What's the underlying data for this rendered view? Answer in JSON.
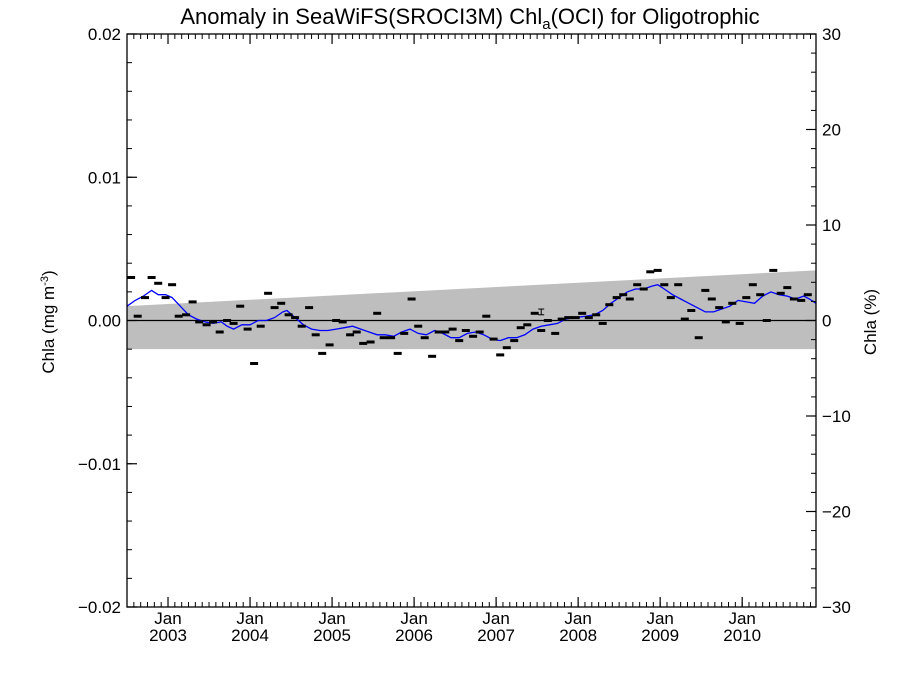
{
  "chart_data": {
    "type": "scatter",
    "title": {
      "main": "Anomaly in SeaWiFS(SROCI3M) Chl",
      "sub": "a",
      "suffix": "(OCI) for Oligotrophic"
    },
    "ylabel": {
      "prefix": "Chla (mg m",
      "sup": "-3",
      "suffix": ")"
    },
    "y2label": "Chla (%)",
    "xlim": [
      2002.5,
      2010.9
    ],
    "ylim": [
      -0.02,
      0.02
    ],
    "y2lim": [
      -30,
      30
    ],
    "x_ticks": [
      {
        "x": 2003.0,
        "month": "Jan",
        "year": "2003"
      },
      {
        "x": 2004.0,
        "month": "Jan",
        "year": "2004"
      },
      {
        "x": 2005.0,
        "month": "Jan",
        "year": "2005"
      },
      {
        "x": 2006.0,
        "month": "Jan",
        "year": "2006"
      },
      {
        "x": 2007.0,
        "month": "Jan",
        "year": "2007"
      },
      {
        "x": 2008.0,
        "month": "Jan",
        "year": "2008"
      },
      {
        "x": 2009.0,
        "month": "Jan",
        "year": "2009"
      },
      {
        "x": 2010.0,
        "month": "Jan",
        "year": "2010"
      }
    ],
    "y_ticks": [
      {
        "v": 0.02,
        "label": "0.02"
      },
      {
        "v": 0.01,
        "label": "0.01"
      },
      {
        "v": 0.0,
        "label": "0.00"
      },
      {
        "v": -0.01,
        "label": "−0.01"
      },
      {
        "v": -0.02,
        "label": "−0.02"
      }
    ],
    "y2_ticks": [
      {
        "v": 30,
        "label": "30"
      },
      {
        "v": 20,
        "label": "20"
      },
      {
        "v": 10,
        "label": "10"
      },
      {
        "v": 0,
        "label": "0"
      },
      {
        "v": -10,
        "label": "−10"
      },
      {
        "v": -20,
        "label": "−20"
      },
      {
        "v": -30,
        "label": "−30"
      }
    ],
    "band": {
      "upper": [
        [
          2002.5,
          0.001
        ],
        [
          2010.9,
          0.0035
        ]
      ],
      "lower": [
        [
          2002.5,
          -0.002
        ],
        [
          2010.9,
          -0.002
        ]
      ],
      "color": "#bebebe"
    },
    "zero_line": 0.0,
    "points": [
      [
        2002.55,
        0.003
      ],
      [
        2002.63,
        0.0003
      ],
      [
        2002.72,
        0.0016
      ],
      [
        2002.8,
        0.003
      ],
      [
        2002.88,
        0.0026
      ],
      [
        2002.97,
        0.0016
      ],
      [
        2003.05,
        0.0025
      ],
      [
        2003.13,
        0.0003
      ],
      [
        2003.22,
        0.0004
      ],
      [
        2003.3,
        0.0013
      ],
      [
        2003.38,
        -0.0001
      ],
      [
        2003.47,
        -0.0003
      ],
      [
        2003.55,
        -0.0001
      ],
      [
        2003.63,
        -0.0008
      ],
      [
        2003.72,
        0.0
      ],
      [
        2003.8,
        -0.0002
      ],
      [
        2003.88,
        0.001
      ],
      [
        2003.97,
        -0.0006
      ],
      [
        2004.05,
        -0.003
      ],
      [
        2004.13,
        -0.0004
      ],
      [
        2004.22,
        0.0019
      ],
      [
        2004.3,
        0.0009
      ],
      [
        2004.38,
        0.0012
      ],
      [
        2004.47,
        0.0004
      ],
      [
        2004.55,
        0.0002
      ],
      [
        2004.63,
        -0.0004
      ],
      [
        2004.72,
        0.0009
      ],
      [
        2004.8,
        -0.001
      ],
      [
        2004.88,
        -0.0023
      ],
      [
        2004.97,
        -0.0017
      ],
      [
        2005.05,
        0.0
      ],
      [
        2005.13,
        -0.0001
      ],
      [
        2005.22,
        -0.001
      ],
      [
        2005.3,
        -0.0008
      ],
      [
        2005.38,
        -0.0016
      ],
      [
        2005.47,
        -0.0015
      ],
      [
        2005.55,
        0.0005
      ],
      [
        2005.63,
        -0.0012
      ],
      [
        2005.72,
        -0.0012
      ],
      [
        2005.8,
        -0.0023
      ],
      [
        2005.88,
        -0.0009
      ],
      [
        2005.97,
        0.0015
      ],
      [
        2006.05,
        -0.0004
      ],
      [
        2006.13,
        -0.0012
      ],
      [
        2006.22,
        -0.0025
      ],
      [
        2006.3,
        -0.0008
      ],
      [
        2006.38,
        -0.0008
      ],
      [
        2006.47,
        -0.0006
      ],
      [
        2006.55,
        -0.0014
      ],
      [
        2006.63,
        -0.0007
      ],
      [
        2006.72,
        -0.0011
      ],
      [
        2006.8,
        -0.0008
      ],
      [
        2006.88,
        0.0003
      ],
      [
        2006.97,
        -0.0013
      ],
      [
        2007.05,
        -0.0024
      ],
      [
        2007.13,
        -0.0019
      ],
      [
        2007.22,
        -0.0014
      ],
      [
        2007.3,
        -0.0005
      ],
      [
        2007.38,
        -0.0003
      ],
      [
        2007.47,
        0.0005
      ],
      [
        2007.55,
        -0.0007
      ],
      [
        2007.63,
        0.0
      ],
      [
        2007.72,
        -0.0009
      ],
      [
        2007.8,
        0.0001
      ],
      [
        2007.88,
        0.0002
      ],
      [
        2007.97,
        0.0002
      ],
      [
        2008.05,
        0.0005
      ],
      [
        2008.13,
        0.0002
      ],
      [
        2008.22,
        0.0004
      ],
      [
        2008.3,
        -0.0002
      ],
      [
        2008.38,
        0.0011
      ],
      [
        2008.47,
        0.0016
      ],
      [
        2008.55,
        0.0018
      ],
      [
        2008.63,
        0.0015
      ],
      [
        2008.72,
        0.0025
      ],
      [
        2008.8,
        0.0022
      ],
      [
        2008.88,
        0.0034
      ],
      [
        2008.97,
        0.0035
      ],
      [
        2009.05,
        0.0025
      ],
      [
        2009.13,
        0.0016
      ],
      [
        2009.22,
        0.0025
      ],
      [
        2009.3,
        0.0001
      ],
      [
        2009.38,
        0.0007
      ],
      [
        2009.47,
        -0.0012
      ],
      [
        2009.55,
        0.0021
      ],
      [
        2009.63,
        0.0015
      ],
      [
        2009.72,
        0.0009
      ],
      [
        2009.8,
        -0.0001
      ],
      [
        2009.88,
        0.0012
      ],
      [
        2009.97,
        -0.0002
      ],
      [
        2010.05,
        0.0016
      ],
      [
        2010.13,
        0.0025
      ],
      [
        2010.22,
        0.0018
      ],
      [
        2010.3,
        0.0
      ],
      [
        2010.38,
        0.0035
      ],
      [
        2010.47,
        0.0019
      ],
      [
        2010.55,
        0.0023
      ],
      [
        2010.63,
        0.0015
      ],
      [
        2010.72,
        0.0014
      ],
      [
        2010.8,
        0.0018
      ]
    ],
    "smooth_line": {
      "color": "#0000ff",
      "points": [
        [
          2002.5,
          0.001
        ],
        [
          2002.6,
          0.0014
        ],
        [
          2002.7,
          0.0017
        ],
        [
          2002.8,
          0.0021
        ],
        [
          2002.88,
          0.0018
        ],
        [
          2002.97,
          0.0018
        ],
        [
          2003.05,
          0.0016
        ],
        [
          2003.15,
          0.001
        ],
        [
          2003.25,
          0.0004
        ],
        [
          2003.35,
          0.0001
        ],
        [
          2003.45,
          -0.0001
        ],
        [
          2003.55,
          -0.0002
        ],
        [
          2003.65,
          -0.0001
        ],
        [
          2003.72,
          -0.0004
        ],
        [
          2003.8,
          -0.0006
        ],
        [
          2003.9,
          -0.0003
        ],
        [
          2004.0,
          -0.0003
        ],
        [
          2004.1,
          0.0
        ],
        [
          2004.2,
          0.0
        ],
        [
          2004.3,
          0.0002
        ],
        [
          2004.4,
          0.0006
        ],
        [
          2004.45,
          0.0007
        ],
        [
          2004.55,
          0.0002
        ],
        [
          2004.65,
          -0.0003
        ],
        [
          2004.75,
          -0.0006
        ],
        [
          2004.85,
          -0.0007
        ],
        [
          2004.95,
          -0.0007
        ],
        [
          2005.05,
          -0.0006
        ],
        [
          2005.15,
          -0.0005
        ],
        [
          2005.25,
          -0.0004
        ],
        [
          2005.35,
          -0.0006
        ],
        [
          2005.45,
          -0.0008
        ],
        [
          2005.55,
          -0.001
        ],
        [
          2005.65,
          -0.001
        ],
        [
          2005.75,
          -0.0011
        ],
        [
          2005.85,
          -0.0008
        ],
        [
          2005.95,
          -0.0006
        ],
        [
          2006.05,
          -0.0009
        ],
        [
          2006.15,
          -0.001
        ],
        [
          2006.25,
          -0.0007
        ],
        [
          2006.35,
          -0.0009
        ],
        [
          2006.45,
          -0.0012
        ],
        [
          2006.55,
          -0.0012
        ],
        [
          2006.65,
          -0.0009
        ],
        [
          2006.75,
          -0.0008
        ],
        [
          2006.85,
          -0.001
        ],
        [
          2006.95,
          -0.0013
        ],
        [
          2007.05,
          -0.0014
        ],
        [
          2007.15,
          -0.0012
        ],
        [
          2007.25,
          -0.0012
        ],
        [
          2007.35,
          -0.001
        ],
        [
          2007.45,
          -0.0006
        ],
        [
          2007.55,
          -0.0004
        ],
        [
          2007.65,
          -0.0003
        ],
        [
          2007.75,
          -0.0002
        ],
        [
          2007.85,
          0.0001
        ],
        [
          2007.95,
          0.0002
        ],
        [
          2008.1,
          0.0003
        ],
        [
          2008.2,
          0.0004
        ],
        [
          2008.3,
          0.0007
        ],
        [
          2008.4,
          0.0012
        ],
        [
          2008.5,
          0.0016
        ],
        [
          2008.6,
          0.002
        ],
        [
          2008.7,
          0.0022
        ],
        [
          2008.8,
          0.0022
        ],
        [
          2008.9,
          0.0024
        ],
        [
          2008.97,
          0.0025
        ],
        [
          2009.05,
          0.0022
        ],
        [
          2009.15,
          0.0018
        ],
        [
          2009.25,
          0.0015
        ],
        [
          2009.35,
          0.0012
        ],
        [
          2009.45,
          0.0009
        ],
        [
          2009.55,
          0.0006
        ],
        [
          2009.65,
          0.0006
        ],
        [
          2009.75,
          0.0008
        ],
        [
          2009.85,
          0.001
        ],
        [
          2009.95,
          0.0014
        ],
        [
          2010.05,
          0.0013
        ],
        [
          2010.15,
          0.0012
        ],
        [
          2010.25,
          0.0017
        ],
        [
          2010.35,
          0.002
        ],
        [
          2010.45,
          0.0018
        ],
        [
          2010.55,
          0.0017
        ],
        [
          2010.65,
          0.0015
        ],
        [
          2010.75,
          0.0017
        ],
        [
          2010.82,
          0.0015
        ],
        [
          2010.9,
          0.0012
        ]
      ]
    },
    "error_bar": {
      "x": 2007.55,
      "y": 0.0006,
      "err": 0.0002
    }
  }
}
